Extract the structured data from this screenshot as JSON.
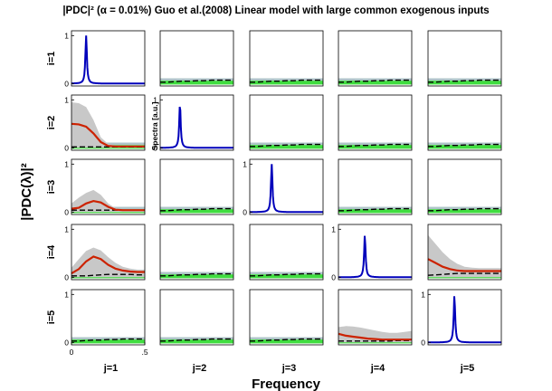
{
  "chart_data": {
    "type": "line",
    "title": "|PDC|² (α = 0.01%) Guo et al.(2008) Linear model with large common exogenous inputs",
    "xlabel": "Frequency",
    "ylabel": "|PDC(λ)|²",
    "diagonal_ylabel": "Spectra [a.u.]",
    "col_labels": [
      "j=1",
      "j=2",
      "j=3",
      "j=4",
      "j=5"
    ],
    "row_labels": [
      "i=1",
      "i=2",
      "i=3",
      "i=4",
      "i=5"
    ],
    "xlim": [
      0,
      0.5
    ],
    "ylim": [
      0,
      1
    ],
    "x_ticks": [
      "0",
      ".5"
    ],
    "y_ticks": [
      "0",
      "1"
    ],
    "x": [
      0,
      0.05,
      0.1,
      0.15,
      0.2,
      0.25,
      0.3,
      0.35,
      0.4,
      0.45,
      0.5
    ],
    "colors": {
      "pdc": "#cc2200",
      "spectra": "#0000bb",
      "threshold": "#000000",
      "ci_band": "#c8c8c8",
      "pdc_band": "#c8c8c8",
      "null_band": "#40dd40",
      "null_band_top": "#aec4c8"
    },
    "spectra": {
      "1": {
        "peak_x": 0.1,
        "peak": 1.0
      },
      "2": {
        "peak_x": 0.135,
        "peak": 0.92
      },
      "3": {
        "peak_x": 0.15,
        "peak": 1.0
      },
      "4": {
        "peak_x": 0.18,
        "peak": 0.88
      },
      "5": {
        "peak_x": 0.18,
        "peak": 0.98
      }
    },
    "series": [
      {
        "i": 2,
        "j": 1,
        "pdc": [
          0.5,
          0.49,
          0.44,
          0.3,
          0.12,
          0.04,
          0.03,
          0.03,
          0.03,
          0.03,
          0.03
        ],
        "ci_upper": [
          0.95,
          0.93,
          0.85,
          0.58,
          0.22,
          0.08,
          0.05,
          0.05,
          0.05,
          0.05,
          0.05
        ],
        "threshold": [
          0.02,
          0.02,
          0.02,
          0.02,
          0.02,
          0.02,
          0.02,
          0.02,
          0.02,
          0.02,
          0.02
        ]
      },
      {
        "i": 3,
        "j": 1,
        "pdc": [
          0.07,
          0.09,
          0.18,
          0.23,
          0.2,
          0.11,
          0.05,
          0.04,
          0.04,
          0.04,
          0.04
        ],
        "ci_upper": [
          0.18,
          0.3,
          0.4,
          0.46,
          0.36,
          0.18,
          0.08,
          0.06,
          0.06,
          0.06,
          0.06
        ],
        "threshold": [
          0.04,
          0.04,
          0.04,
          0.04,
          0.04,
          0.04,
          0.04,
          0.04,
          0.04,
          0.04,
          0.04
        ]
      },
      {
        "i": 4,
        "j": 1,
        "pdc": [
          0.08,
          0.17,
          0.33,
          0.43,
          0.38,
          0.26,
          0.18,
          0.14,
          0.12,
          0.11,
          0.11
        ],
        "ci_upper": [
          0.2,
          0.38,
          0.55,
          0.62,
          0.56,
          0.42,
          0.3,
          0.22,
          0.18,
          0.16,
          0.16
        ],
        "threshold": [
          0.03,
          0.03,
          0.03,
          0.04,
          0.05,
          0.06,
          0.06,
          0.06,
          0.06,
          0.05,
          0.05
        ]
      },
      {
        "i": 4,
        "j": 5,
        "pdc": [
          0.38,
          0.3,
          0.22,
          0.17,
          0.14,
          0.13,
          0.13,
          0.13,
          0.13,
          0.13,
          0.13
        ],
        "ci_upper": [
          0.88,
          0.7,
          0.52,
          0.38,
          0.28,
          0.22,
          0.2,
          0.19,
          0.19,
          0.19,
          0.19
        ],
        "threshold": [
          0.04,
          0.05,
          0.06,
          0.07,
          0.08,
          0.08,
          0.08,
          0.08,
          0.08,
          0.08,
          0.08
        ]
      },
      {
        "i": 5,
        "j": 4,
        "pdc": [
          0.18,
          0.14,
          0.12,
          0.1,
          0.08,
          0.07,
          0.06,
          0.06,
          0.06,
          0.06,
          0.06
        ],
        "ci_upper": [
          0.32,
          0.34,
          0.33,
          0.31,
          0.28,
          0.25,
          0.22,
          0.2,
          0.2,
          0.22,
          0.24
        ],
        "threshold": [
          0.03,
          0.03,
          0.03,
          0.03,
          0.03,
          0.03,
          0.03,
          0.03,
          0.04,
          0.04,
          0.04
        ]
      }
    ],
    "null_threshold": [
      0.03,
      0.03,
      0.04,
      0.05,
      0.05,
      0.06,
      0.06,
      0.07,
      0.07,
      0.07,
      0.07
    ],
    "null_band": [
      0.06,
      0.11
    ]
  }
}
